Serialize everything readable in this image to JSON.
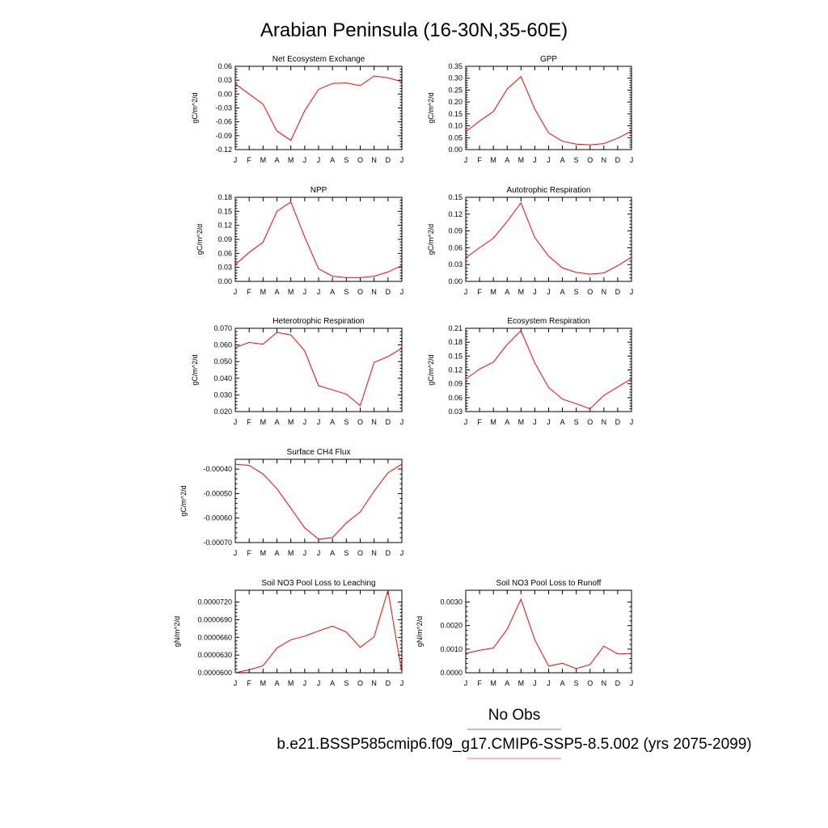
{
  "figure": {
    "title": "Arabian Peninsula (16-30N,35-60E)",
    "legend": [
      {
        "label": "No Obs",
        "color": "#7070ff"
      },
      {
        "label": "b.e21.BSSP585cmip6.f09_g17.CMIP6-SSP5-8.5.002 (yrs 2075-2099)",
        "color": "#ff7070"
      }
    ],
    "line_color": "#ff0000"
  },
  "chart_data": [
    {
      "type": "line",
      "title": "Net Ecosystem Exchange",
      "ylabel": "gC/m^2/d",
      "categories": [
        "J",
        "F",
        "M",
        "A",
        "M",
        "J",
        "J",
        "A",
        "S",
        "O",
        "N",
        "D",
        "J"
      ],
      "ylim": [
        -0.12,
        0.06
      ],
      "yticks": [
        "0.06",
        "0.03",
        "0.00",
        "-0.03",
        "-0.06",
        "-0.09",
        "-0.12"
      ],
      "values": [
        0.022,
        0.0,
        -0.022,
        -0.08,
        -0.1,
        -0.036,
        0.01,
        0.023,
        0.024,
        0.018,
        0.039,
        0.035,
        0.027
      ]
    },
    {
      "type": "line",
      "title": "GPP",
      "ylabel": "gC/m^2/d",
      "categories": [
        "J",
        "F",
        "M",
        "A",
        "M",
        "J",
        "J",
        "A",
        "S",
        "O",
        "N",
        "D",
        "J"
      ],
      "ylim": [
        0.0,
        0.35
      ],
      "yticks": [
        "0.35",
        "0.30",
        "0.25",
        "0.20",
        "0.15",
        "0.10",
        "0.05",
        "0.00"
      ],
      "values": [
        0.075,
        0.12,
        0.16,
        0.255,
        0.307,
        0.17,
        0.07,
        0.035,
        0.023,
        0.02,
        0.025,
        0.048,
        0.077
      ]
    },
    {
      "type": "line",
      "title": "NPP",
      "ylabel": "gC/m^2/d",
      "categories": [
        "J",
        "F",
        "M",
        "A",
        "M",
        "J",
        "J",
        "A",
        "S",
        "O",
        "N",
        "D",
        "J"
      ],
      "ylim": [
        0.0,
        0.18
      ],
      "yticks": [
        "0.18",
        "0.15",
        "0.12",
        "0.09",
        "0.06",
        "0.03",
        "0.00"
      ],
      "values": [
        0.036,
        0.062,
        0.084,
        0.15,
        0.17,
        0.095,
        0.027,
        0.011,
        0.008,
        0.008,
        0.011,
        0.02,
        0.034
      ]
    },
    {
      "type": "line",
      "title": "Autotrophic Respiration",
      "ylabel": "gC/m^2/d",
      "categories": [
        "J",
        "F",
        "M",
        "A",
        "M",
        "J",
        "J",
        "A",
        "S",
        "O",
        "N",
        "D",
        "J"
      ],
      "ylim": [
        0.0,
        0.15
      ],
      "yticks": [
        "0.15",
        "0.12",
        "0.09",
        "0.06",
        "0.03",
        "0.00"
      ],
      "values": [
        0.042,
        0.06,
        0.077,
        0.107,
        0.14,
        0.078,
        0.045,
        0.024,
        0.016,
        0.013,
        0.015,
        0.028,
        0.043
      ]
    },
    {
      "type": "line",
      "title": "Heterotrophic Respiration",
      "ylabel": "gC/m^2/d",
      "categories": [
        "J",
        "F",
        "M",
        "A",
        "M",
        "J",
        "J",
        "A",
        "S",
        "O",
        "N",
        "D",
        "J"
      ],
      "ylim": [
        0.02,
        0.07
      ],
      "yticks": [
        "0.070",
        "0.060",
        "0.050",
        "0.040",
        "0.030",
        "0.020"
      ],
      "values": [
        0.0585,
        0.0615,
        0.0605,
        0.0675,
        0.066,
        0.0565,
        0.0355,
        0.033,
        0.0305,
        0.0235,
        0.0495,
        0.053,
        0.058
      ]
    },
    {
      "type": "line",
      "title": "Ecosystem Respiration",
      "ylabel": "gC/m^2/d",
      "categories": [
        "J",
        "F",
        "M",
        "A",
        "M",
        "J",
        "J",
        "A",
        "S",
        "O",
        "N",
        "D",
        "J"
      ],
      "ylim": [
        0.03,
        0.21
      ],
      "yticks": [
        "0.21",
        "0.18",
        "0.15",
        "0.12",
        "0.09",
        "0.06",
        "0.03"
      ],
      "values": [
        0.1,
        0.122,
        0.137,
        0.175,
        0.205,
        0.135,
        0.082,
        0.057,
        0.047,
        0.036,
        0.065,
        0.083,
        0.101
      ]
    },
    {
      "type": "line",
      "title": "Surface CH4 Flux",
      "ylabel": "gC/m^2/d",
      "categories": [
        "J",
        "F",
        "M",
        "A",
        "M",
        "J",
        "J",
        "A",
        "S",
        "O",
        "N",
        "D",
        "J"
      ],
      "ylim": [
        -0.0007,
        -0.00036
      ],
      "yticks": [
        "-0.00040",
        "-0.00050",
        "-0.00060",
        "-0.00070"
      ],
      "values": [
        -0.00038,
        -0.000385,
        -0.00042,
        -0.00048,
        -0.00056,
        -0.00064,
        -0.000686,
        -0.00068,
        -0.00062,
        -0.000575,
        -0.00049,
        -0.000415,
        -0.00038
      ]
    },
    {
      "type": "line",
      "title": "Soil NO3 Pool Loss to Leaching",
      "ylabel": "gN/m^2/d",
      "categories": [
        "J",
        "F",
        "M",
        "A",
        "M",
        "J",
        "J",
        "A",
        "S",
        "O",
        "N",
        "D",
        "J"
      ],
      "ylim": [
        6e-05,
        7.4e-05
      ],
      "yticks": [
        "0.0000720",
        "0.0000690",
        "0.0000660",
        "0.0000630",
        "0.0000600"
      ],
      "values": [
        6e-05,
        6.05e-05,
        6.12e-05,
        6.42e-05,
        6.56e-05,
        6.62e-05,
        6.71e-05,
        6.79e-05,
        6.69e-05,
        6.43e-05,
        6.61e-05,
        7.4e-05,
        6e-05
      ]
    },
    {
      "type": "line",
      "title": "Soil NO3 Pool Loss to Runoff",
      "ylabel": "gN/m^2/d",
      "categories": [
        "J",
        "F",
        "M",
        "A",
        "M",
        "J",
        "J",
        "A",
        "S",
        "O",
        "N",
        "D",
        "J"
      ],
      "ylim": [
        0.0,
        0.0035
      ],
      "yticks": [
        "0.0030",
        "0.0020",
        "0.0010",
        "0.0000"
      ],
      "values": [
        0.00082,
        0.00095,
        0.00105,
        0.00185,
        0.00312,
        0.0014,
        0.00028,
        0.0004,
        0.00018,
        0.00035,
        0.00113,
        0.0008,
        0.00082
      ]
    }
  ]
}
